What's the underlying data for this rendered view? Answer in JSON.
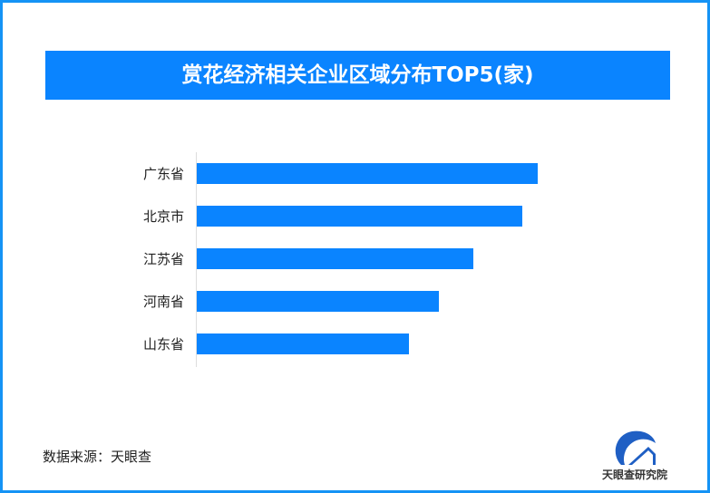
{
  "chart_data": {
    "type": "bar",
    "orientation": "horizontal",
    "title": "赏花经济相关企业区域分布TOP5(家)",
    "categories": [
      "广东省",
      "北京市",
      "江苏省",
      "河南省",
      "山东省"
    ],
    "values": [
      377,
      360,
      306,
      268,
      235
    ],
    "grid": false,
    "color": "#0a84ff"
  },
  "source": "数据来源：天眼查",
  "logo_text": "天眼查研究院",
  "colors": {
    "border": "#1593f5",
    "title_bg": "#0a84ff"
  }
}
